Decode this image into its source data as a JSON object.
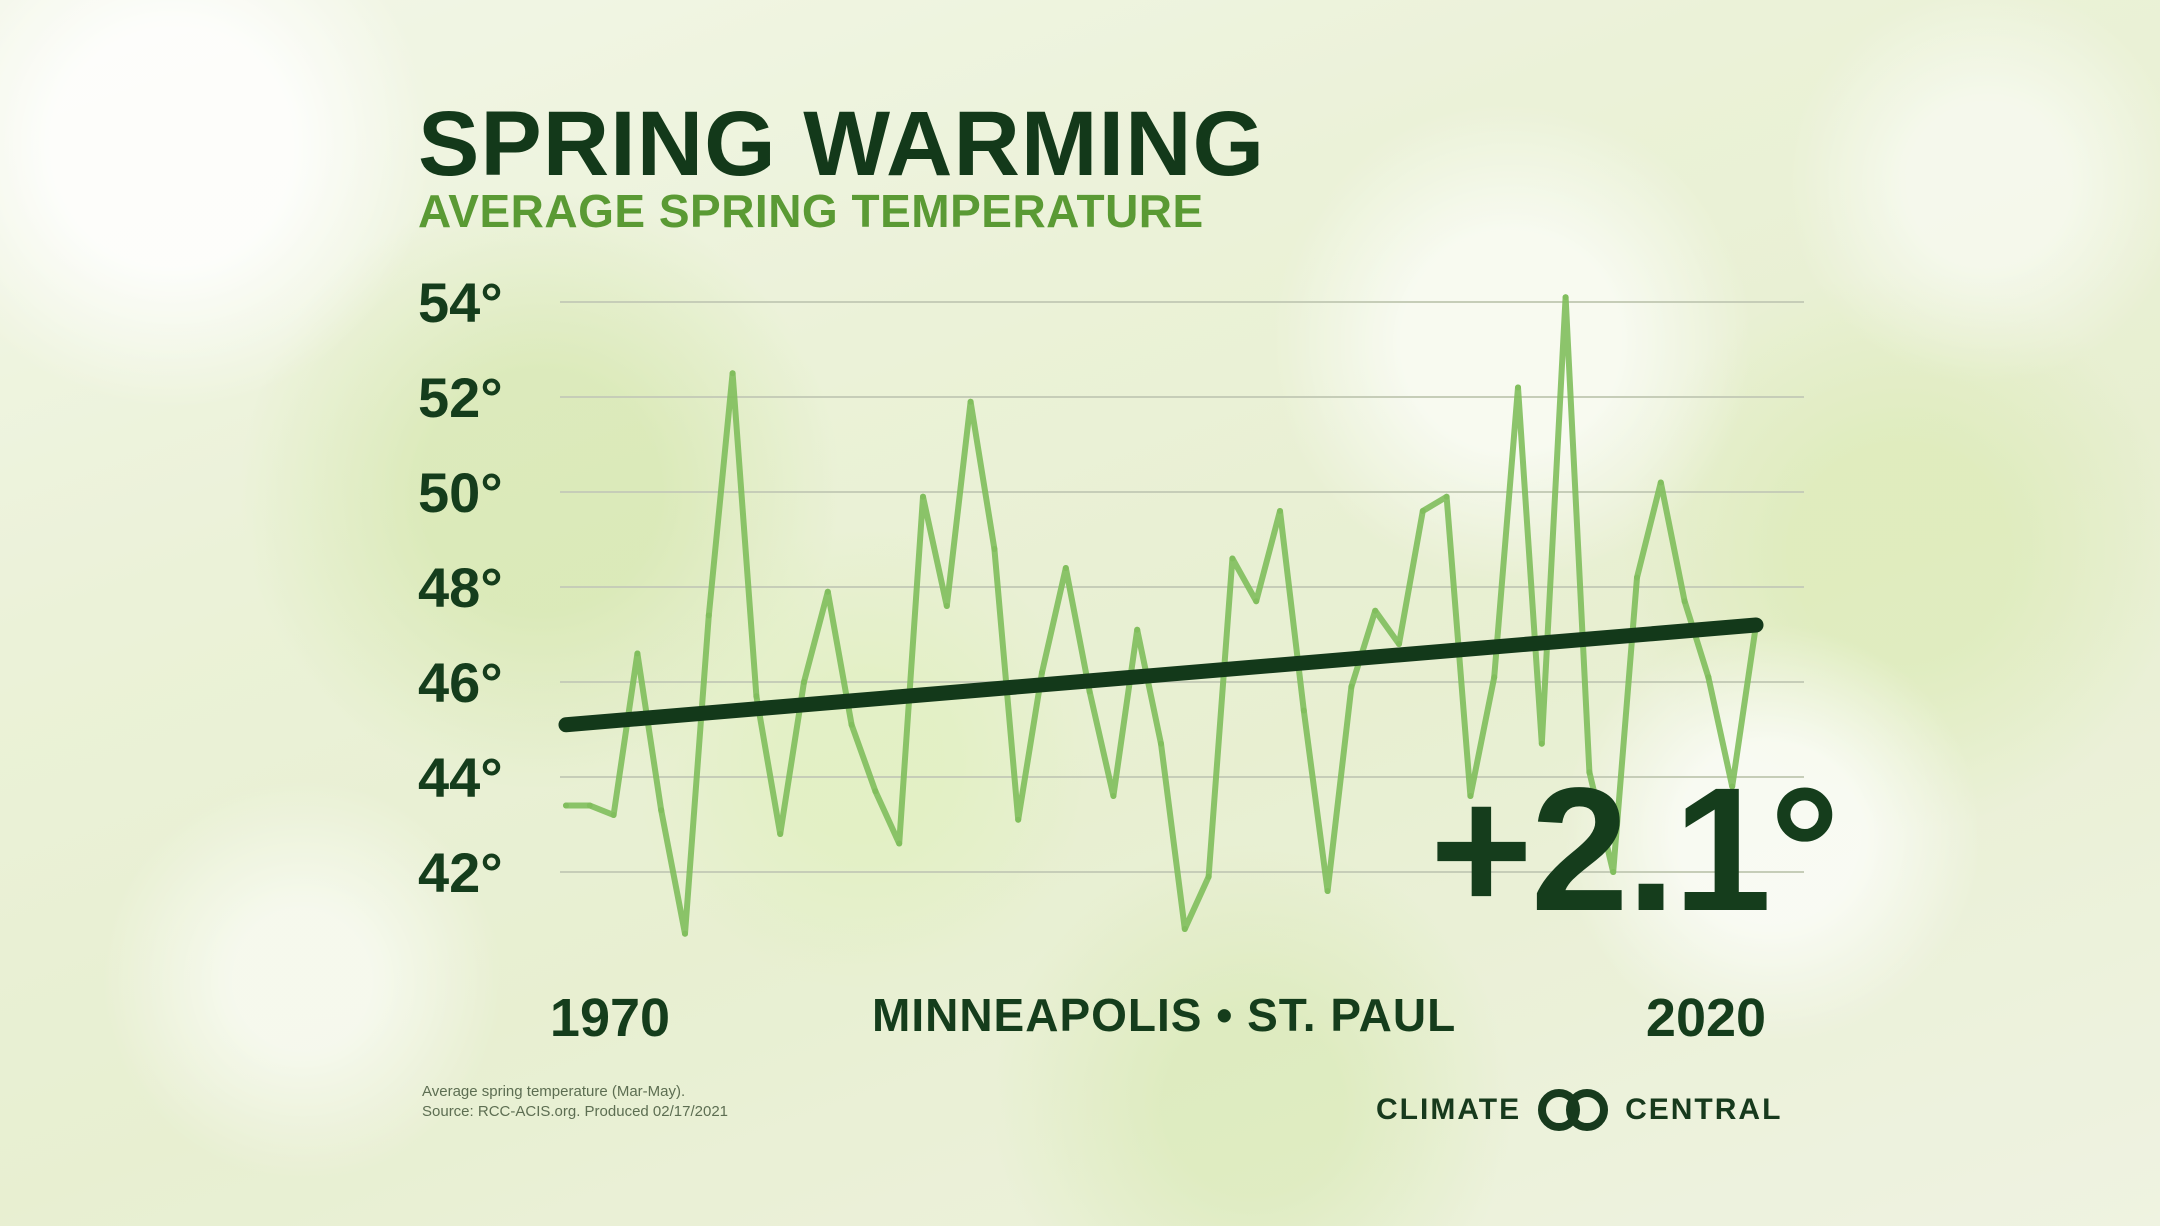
{
  "header": {
    "title": "SPRING WARMING",
    "subtitle": "AVERAGE SPRING TEMPERATURE"
  },
  "location": "MINNEAPOLIS • ST. PAUL",
  "change_label": "+2.1°",
  "footnote": {
    "line1": "Average spring temperature (Mar-May).",
    "line2": "Source: RCC-ACIS.org. Produced 02/17/2021"
  },
  "brand": {
    "left_word": "CLIMATE",
    "right_word": "CENTRAL",
    "icon": "climate-central-logo-icon"
  },
  "colors": {
    "title": "#13391a",
    "subtitle": "#5a9a34",
    "data_line": "#7fbe5c",
    "trend_line": "#13391a",
    "gridline": "#c6cdb8"
  },
  "chart_data": {
    "type": "line",
    "title": "SPRING WARMING",
    "subtitle": "AVERAGE SPRING TEMPERATURE",
    "xlim": [
      1970,
      2020
    ],
    "ylim": [
      42,
      54
    ],
    "y_ticks": [
      54,
      52,
      50,
      48,
      46,
      44,
      42
    ],
    "y_tick_labels": [
      "54°",
      "52°",
      "50°",
      "48°",
      "46°",
      "44°",
      "42°"
    ],
    "x_tick_labels": [
      "1970",
      "2020"
    ],
    "grid": true,
    "series": [
      {
        "name": "",
        "x": [
          1970,
          1971,
          1972,
          1973,
          1974,
          1975,
          1976,
          1977,
          1978,
          1979,
          1980,
          1981,
          1982,
          1983,
          1984,
          1985,
          1986,
          1987,
          1988,
          1989,
          1990,
          1991,
          1992,
          1993,
          1994,
          1995,
          1996,
          1997,
          1998,
          1999,
          2000,
          2001,
          2002,
          2003,
          2004,
          2005,
          2006,
          2007,
          2008,
          2009,
          2010,
          2011,
          2012,
          2013,
          2014,
          2015,
          2016,
          2017,
          2018,
          2019,
          2020
        ],
        "values": [
          43.4,
          43.4,
          43.2,
          46.6,
          43.3,
          40.7,
          47.4,
          52.5,
          45.7,
          42.8,
          46.0,
          47.9,
          45.1,
          43.7,
          42.6,
          49.9,
          47.6,
          51.9,
          48.8,
          43.1,
          46.2,
          48.4,
          45.8,
          43.6,
          47.1,
          44.7,
          40.8,
          41.9,
          48.6,
          47.7,
          49.6,
          45.4,
          41.6,
          45.9,
          47.5,
          46.8,
          49.6,
          49.9,
          43.6,
          46.1,
          52.2,
          44.7,
          54.1,
          44.1,
          42.0,
          48.2,
          50.2,
          47.7,
          46.1,
          43.8,
          47.2
        ]
      }
    ],
    "trend": {
      "x": [
        1970,
        2020
      ],
      "values": [
        45.1,
        47.2
      ]
    },
    "annotations": [
      "+2.1°"
    ]
  }
}
